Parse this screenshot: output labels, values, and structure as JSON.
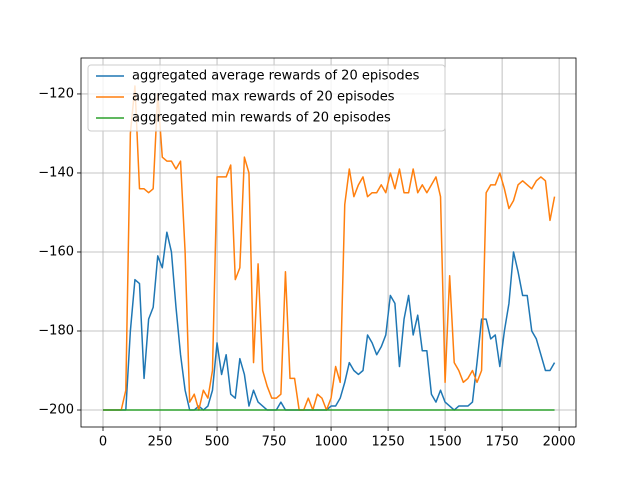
{
  "chart_data": {
    "type": "line",
    "x": [
      0,
      20,
      40,
      60,
      80,
      100,
      120,
      140,
      160,
      180,
      200,
      220,
      240,
      260,
      280,
      300,
      320,
      340,
      360,
      380,
      400,
      420,
      440,
      460,
      480,
      500,
      520,
      540,
      560,
      580,
      600,
      620,
      640,
      660,
      680,
      700,
      720,
      740,
      760,
      780,
      800,
      820,
      840,
      860,
      880,
      900,
      920,
      940,
      960,
      980,
      1000,
      1020,
      1040,
      1060,
      1080,
      1100,
      1120,
      1140,
      1160,
      1180,
      1200,
      1220,
      1240,
      1260,
      1280,
      1300,
      1320,
      1340,
      1360,
      1380,
      1400,
      1420,
      1440,
      1460,
      1480,
      1500,
      1520,
      1540,
      1560,
      1580,
      1600,
      1620,
      1640,
      1660,
      1680,
      1700,
      1720,
      1740,
      1760,
      1780,
      1800,
      1820,
      1840,
      1860,
      1880,
      1900,
      1920,
      1940,
      1960,
      1980
    ],
    "series": [
      {
        "name": "aggregated average rewards of 20 episodes",
        "color": "#1f77b4",
        "values": [
          -200,
          -200,
          -200,
          -200,
          -200,
          -200,
          -180,
          -167,
          -168,
          -192,
          -177,
          -174,
          -161,
          -164,
          -155,
          -160,
          -174,
          -186,
          -195,
          -200,
          -200,
          -199,
          -200,
          -199,
          -195,
          -183,
          -191,
          -186,
          -196,
          -197,
          -187,
          -191,
          -199,
          -195,
          -198,
          -199,
          -200,
          -200,
          -200,
          -198,
          -200,
          -200,
          -200,
          -200,
          -200,
          -200,
          -200,
          -200,
          -200,
          -200,
          -199,
          -199,
          -197,
          -193,
          -188,
          -190,
          -191,
          -190,
          -181,
          -183,
          -186,
          -184,
          -181,
          -171,
          -173,
          -189,
          -177,
          -171,
          -181,
          -176,
          -185,
          -185,
          -196,
          -198,
          -195,
          -198,
          -199,
          -200,
          -199,
          -199,
          -199,
          -198,
          -188,
          -177,
          -177,
          -182,
          -181,
          -189,
          -180,
          -173,
          -160,
          -165,
          -171,
          -171,
          -180,
          -182,
          -186,
          -190,
          -190,
          -188
        ]
      },
      {
        "name": "aggregated max rewards of 20 episodes",
        "color": "#ff7f0e",
        "values": [
          -200,
          -200,
          -200,
          -200,
          -200,
          -195,
          -130,
          -118,
          -144,
          -144,
          -145,
          -144,
          -120,
          -136,
          -137,
          -137,
          -139,
          -137,
          -160,
          -198,
          -196,
          -200,
          -195,
          -197,
          -190,
          -141,
          -141,
          -141,
          -138,
          -167,
          -164,
          -136,
          -140,
          -188,
          -163,
          -190,
          -194,
          -197,
          -197,
          -196,
          -165,
          -192,
          -192,
          -200,
          -200,
          -197,
          -200,
          -196,
          -197,
          -200,
          -197,
          -189,
          -193,
          -148,
          -139,
          -146,
          -143,
          -141,
          -146,
          -145,
          -145,
          -143,
          -145,
          -140,
          -144,
          -139,
          -145,
          -145,
          -139,
          -145,
          -143,
          -145,
          -143,
          -141,
          -146,
          -193,
          -166,
          -188,
          -190,
          -193,
          -192,
          -190,
          -193,
          -190,
          -145,
          -143,
          -143,
          -140,
          -144,
          -149,
          -147,
          -143,
          -142,
          -143,
          -144,
          -142,
          -141,
          -142,
          -152,
          -146
        ]
      },
      {
        "name": "aggregated min rewards of 20 episodes",
        "color": "#2ca02c",
        "values": [
          -200,
          -200,
          -200,
          -200,
          -200,
          -200,
          -200,
          -200,
          -200,
          -200,
          -200,
          -200,
          -200,
          -200,
          -200,
          -200,
          -200,
          -200,
          -200,
          -200,
          -200,
          -200,
          -200,
          -200,
          -200,
          -200,
          -200,
          -200,
          -200,
          -200,
          -200,
          -200,
          -200,
          -200,
          -200,
          -200,
          -200,
          -200,
          -200,
          -200,
          -200,
          -200,
          -200,
          -200,
          -200,
          -200,
          -200,
          -200,
          -200,
          -200,
          -200,
          -200,
          -200,
          -200,
          -200,
          -200,
          -200,
          -200,
          -200,
          -200,
          -200,
          -200,
          -200,
          -200,
          -200,
          -200,
          -200,
          -200,
          -200,
          -200,
          -200,
          -200,
          -200,
          -200,
          -200,
          -200,
          -200,
          -200,
          -200,
          -200,
          -200,
          -200,
          -200,
          -200,
          -200,
          -200,
          -200,
          -200,
          -200,
          -200,
          -200,
          -200,
          -200,
          -200,
          -200,
          -200,
          -200,
          -200,
          -200,
          -200
        ]
      }
    ],
    "xlim": [
      -96.5,
      2074
    ],
    "ylim": [
      -204.3,
      -110.9
    ],
    "xticks": [
      0,
      250,
      500,
      750,
      1000,
      1250,
      1500,
      1750,
      2000
    ],
    "yticks": [
      {
        "value": -200,
        "label": "−200"
      },
      {
        "value": -180,
        "label": "−180"
      },
      {
        "value": -160,
        "label": "−160"
      },
      {
        "value": -140,
        "label": "−140"
      },
      {
        "value": -120,
        "label": "−120"
      }
    ],
    "grid": true,
    "legend": "upper-left"
  }
}
